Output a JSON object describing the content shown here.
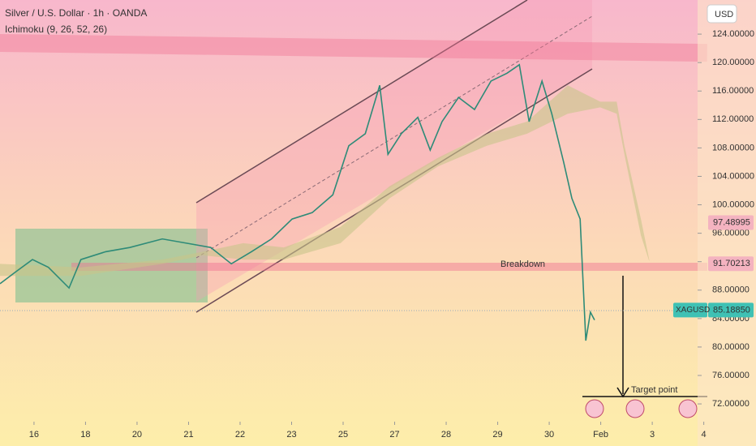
{
  "chart_data": {
    "type": "line",
    "title": "Silver / U.S. Dollar · 1h · OANDA",
    "subtitle": "Ichimoku (9, 26, 52, 26)",
    "currency": "USD",
    "xlim": [
      -0.66,
      12.88
    ],
    "ylim": [
      69.5,
      128.8
    ],
    "xticks": [
      {
        "value": 0,
        "label": "16"
      },
      {
        "value": 1,
        "label": "18"
      },
      {
        "value": 2,
        "label": "20"
      },
      {
        "value": 3,
        "label": "21"
      },
      {
        "value": 4,
        "label": "22"
      },
      {
        "value": 5,
        "label": "23"
      },
      {
        "value": 6,
        "label": "25"
      },
      {
        "value": 7,
        "label": "27"
      },
      {
        "value": 8,
        "label": "28"
      },
      {
        "value": 9,
        "label": "29"
      },
      {
        "value": 10,
        "label": "30"
      },
      {
        "value": 11,
        "label": "Feb"
      },
      {
        "value": 12,
        "label": "3"
      },
      {
        "value": 13,
        "label": "4"
      }
    ],
    "yticks": [
      {
        "value": 72,
        "label": "72.00000"
      },
      {
        "value": 76,
        "label": "76.00000"
      },
      {
        "value": 80,
        "label": "80.00000"
      },
      {
        "value": 84,
        "label": "84.00000"
      },
      {
        "value": 88,
        "label": "88.00000"
      },
      {
        "value": 92,
        "label": "92.00000"
      },
      {
        "value": 96,
        "label": "96.00000"
      },
      {
        "value": 100,
        "label": "100.00000"
      },
      {
        "value": 104,
        "label": "104.00000"
      },
      {
        "value": 108,
        "label": "108.00000"
      },
      {
        "value": 112,
        "label": "112.00000"
      },
      {
        "value": 116,
        "label": "116.00000"
      },
      {
        "value": 120,
        "label": "120.00000"
      },
      {
        "value": 124,
        "label": "124.00000"
      }
    ],
    "series": [
      {
        "name": "XAGUSD",
        "color": "#2e8b78",
        "x": [
          -0.66,
          -0.35,
          -0.03,
          0.28,
          0.68,
          0.91,
          1.39,
          1.86,
          2.49,
          2.96,
          3.43,
          3.83,
          4.22,
          4.61,
          5.01,
          5.4,
          5.8,
          6.11,
          6.43,
          6.71,
          6.87,
          7.13,
          7.45,
          7.69,
          7.92,
          8.24,
          8.55,
          8.87,
          9.18,
          9.42,
          9.61,
          9.86,
          10.05,
          10.28,
          10.44,
          10.6,
          10.71,
          10.8,
          10.88
        ],
        "values": [
          88.9,
          90.6,
          92.3,
          91.2,
          88.3,
          92.3,
          93.4,
          94.0,
          95.2,
          94.6,
          94.0,
          91.7,
          93.4,
          95.2,
          98.0,
          98.9,
          101.4,
          108.3,
          110.0,
          116.8,
          107.1,
          110.0,
          112.3,
          107.7,
          111.7,
          115.1,
          113.4,
          117.4,
          118.5,
          119.7,
          111.7,
          117.4,
          112.8,
          106.0,
          100.9,
          98.0,
          80.9,
          84.9,
          83.8
        ]
      }
    ],
    "cloud": {
      "color": "#c8c48a",
      "x": [
        -0.66,
        0.91,
        2.49,
        3.28,
        4.06,
        4.85,
        5.95,
        6.9,
        7.84,
        8.79,
        9.57,
        10.36,
        10.99,
        11.31,
        11.46,
        11.78,
        11.94
      ],
      "upper": [
        91.7,
        91.2,
        92.3,
        93.4,
        94.6,
        94.0,
        96.9,
        102.6,
        106.6,
        110.0,
        111.7,
        116.8,
        114.5,
        114.5,
        108.3,
        98.0,
        92.3
      ],
      "lower": [
        90.0,
        90.0,
        91.7,
        92.9,
        92.3,
        92.3,
        94.6,
        100.9,
        105.4,
        108.3,
        110.0,
        112.8,
        113.7,
        112.8,
        107.1,
        95.7,
        92.1
      ]
    },
    "price_labels": [
      {
        "value": 97.48995,
        "label": "97.48995",
        "color": "#f4b3c0"
      },
      {
        "value": 91.70213,
        "label": "91.70213",
        "color": "#f4b3c0"
      },
      {
        "value": 85.1885,
        "label": "85.18850",
        "color": "#3fc1b4",
        "name": "XAGUSD"
      }
    ],
    "annotations": [
      "Breakdown",
      "Target point"
    ]
  }
}
